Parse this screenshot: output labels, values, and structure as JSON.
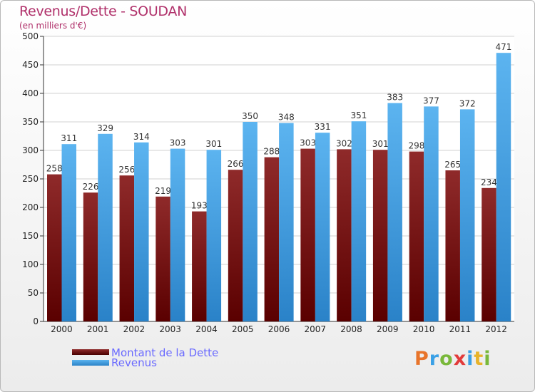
{
  "chart_data": {
    "type": "bar",
    "title": "Revenus/Dette - SOUDAN",
    "subtitle": "(en milliers d'€)",
    "categories": [
      "2000",
      "2001",
      "2002",
      "2003",
      "2004",
      "2005",
      "2006",
      "2007",
      "2008",
      "2009",
      "2010",
      "2011",
      "2012"
    ],
    "series": [
      {
        "name": "Montant de la Dette",
        "color": "#7a1212",
        "values": [
          258,
          226,
          256,
          219,
          193,
          266,
          288,
          303,
          302,
          301,
          298,
          265,
          234
        ]
      },
      {
        "name": "Revenus",
        "color": "#3aa0e6",
        "values": [
          311,
          329,
          314,
          303,
          301,
          350,
          348,
          331,
          351,
          383,
          377,
          372,
          471
        ]
      }
    ],
    "ylim": [
      0,
      500
    ],
    "yticks": [
      0,
      50,
      100,
      150,
      200,
      250,
      300,
      350,
      400,
      450,
      500
    ],
    "grid": true,
    "legend_position": "bottom-left"
  },
  "logo": {
    "letters": [
      {
        "ch": "P",
        "color": "#e8742a"
      },
      {
        "ch": "r",
        "color": "#3aa0e6"
      },
      {
        "ch": "o",
        "color": "#79b83a"
      },
      {
        "ch": "x",
        "color": "#e23b3b"
      },
      {
        "ch": "i",
        "color": "#3aa0e6"
      },
      {
        "ch": "t",
        "color": "#e8b32a"
      },
      {
        "ch": "i",
        "color": "#79b83a"
      }
    ]
  }
}
